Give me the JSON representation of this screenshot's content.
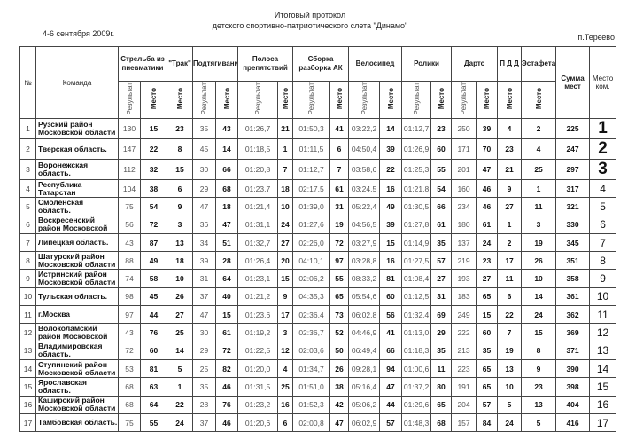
{
  "header": {
    "title": "Итоговый протокол",
    "subtitle": "детского спортивно-патриотического слета \"Динамо\"",
    "date": "4-6 сентября 2009г.",
    "location": "п.Терєево"
  },
  "columns": {
    "number": "№",
    "team": "Команда",
    "groups": [
      "Стрельба из пневматики",
      "\"Трак\"",
      "Подтягивание",
      "Полоса препятствий",
      "Сборка разборка АК",
      "Велосипед",
      "Ролики",
      "Дартс",
      "П Д Д",
      "Эстафета"
    ],
    "sum": "Сумма мест",
    "final": "Место ком.",
    "result": "Результат",
    "place": "Место"
  },
  "rows": [
    {
      "n": "1",
      "team": "Рузский район Московской области",
      "cells": [
        "130",
        "15",
        "23",
        "35",
        "43",
        "01:26,7",
        "21",
        "01:50,3",
        "41",
        "03:22,2",
        "14",
        "01:12,7",
        "23",
        "250",
        "39",
        "4",
        "2",
        "225",
        "1"
      ]
    },
    {
      "n": "2",
      "team": "Тверская область.",
      "cells": [
        "147",
        "22",
        "8",
        "45",
        "14",
        "01:18,5",
        "1",
        "01:11,5",
        "6",
        "04:50,4",
        "39",
        "01:26,9",
        "60",
        "171",
        "70",
        "23",
        "4",
        "247",
        "2"
      ]
    },
    {
      "n": "3",
      "team": "Воронежская область.",
      "cells": [
        "112",
        "32",
        "15",
        "30",
        "66",
        "01:20,8",
        "7",
        "01:12,7",
        "7",
        "03:58,6",
        "22",
        "01:25,3",
        "55",
        "201",
        "47",
        "21",
        "25",
        "297",
        "3"
      ]
    },
    {
      "n": "4",
      "team": "Республика Татарстан",
      "cells": [
        "104",
        "38",
        "6",
        "29",
        "68",
        "01:23,7",
        "18",
        "02:17,5",
        "61",
        "03:24,5",
        "16",
        "01:21,8",
        "54",
        "160",
        "46",
        "9",
        "1",
        "317",
        "4"
      ]
    },
    {
      "n": "5",
      "team": "Смоленская область.",
      "cells": [
        "75",
        "54",
        "9",
        "47",
        "18",
        "01:21,4",
        "10",
        "01:39,0",
        "31",
        "05:22,4",
        "49",
        "01:30,5",
        "66",
        "234",
        "46",
        "27",
        "11",
        "321",
        "5"
      ]
    },
    {
      "n": "6",
      "team": "Воскресенский район Московской",
      "cells": [
        "56",
        "72",
        "3",
        "36",
        "47",
        "01:31,1",
        "24",
        "01:27,6",
        "19",
        "04:56,5",
        "39",
        "01:27,8",
        "61",
        "180",
        "61",
        "1",
        "3",
        "330",
        "6"
      ]
    },
    {
      "n": "7",
      "team": "Липецкая область.",
      "cells": [
        "43",
        "87",
        "13",
        "34",
        "51",
        "01:32,7",
        "27",
        "02:26,0",
        "72",
        "03:27,9",
        "15",
        "01:14,9",
        "35",
        "137",
        "24",
        "2",
        "19",
        "345",
        "7"
      ]
    },
    {
      "n": "8",
      "team": "Шатурский район Московской области",
      "cells": [
        "88",
        "49",
        "18",
        "39",
        "28",
        "01:26,4",
        "20",
        "04:10,1",
        "97",
        "03:28,8",
        "16",
        "01:27,5",
        "57",
        "219",
        "23",
        "17",
        "26",
        "351",
        "8"
      ]
    },
    {
      "n": "9",
      "team": "Истринский район Московской области",
      "cells": [
        "74",
        "58",
        "10",
        "31",
        "64",
        "01:23,1",
        "15",
        "02:06,2",
        "55",
        "08:33,2",
        "81",
        "01:08,4",
        "27",
        "193",
        "27",
        "11",
        "10",
        "358",
        "9"
      ]
    },
    {
      "n": "10",
      "team": "Тульская область.",
      "cells": [
        "98",
        "45",
        "26",
        "37",
        "40",
        "01:21,2",
        "9",
        "04:35,3",
        "65",
        "05:54,6",
        "60",
        "01:12,5",
        "31",
        "183",
        "65",
        "6",
        "14",
        "361",
        "10"
      ]
    },
    {
      "n": "11",
      "team": "г.Москва",
      "cells": [
        "97",
        "44",
        "27",
        "47",
        "15",
        "01:23,6",
        "17",
        "02:36,4",
        "73",
        "06:02,8",
        "56",
        "01:32,4",
        "69",
        "249",
        "15",
        "22",
        "24",
        "362",
        "11"
      ]
    },
    {
      "n": "12",
      "team": "Волоколамский район Московской",
      "cells": [
        "43",
        "76",
        "25",
        "30",
        "61",
        "01:19,2",
        "3",
        "02:36,7",
        "52",
        "04:46,9",
        "41",
        "01:13,0",
        "29",
        "222",
        "60",
        "7",
        "15",
        "369",
        "12"
      ]
    },
    {
      "n": "13",
      "team": "Владимировская область.",
      "cells": [
        "72",
        "60",
        "14",
        "29",
        "72",
        "01:22,5",
        "12",
        "02:03,6",
        "50",
        "06:49,4",
        "66",
        "01:18,3",
        "35",
        "213",
        "35",
        "19",
        "8",
        "371",
        "13"
      ]
    },
    {
      "n": "14",
      "team": "Ступинский район Московской области",
      "cells": [
        "53",
        "81",
        "5",
        "25",
        "82",
        "01:20,0",
        "4",
        "01:34,7",
        "26",
        "09:28,1",
        "94",
        "01:00,6",
        "11",
        "223",
        "65",
        "13",
        "9",
        "390",
        "14"
      ]
    },
    {
      "n": "15",
      "team": "Ярославская область.",
      "cells": [
        "68",
        "63",
        "1",
        "35",
        "46",
        "01:31,5",
        "25",
        "01:51,0",
        "38",
        "05:16,4",
        "47",
        "01:37,2",
        "80",
        "191",
        "65",
        "10",
        "23",
        "398",
        "15"
      ]
    },
    {
      "n": "16",
      "team": "Каширский район Московской области",
      "cells": [
        "68",
        "64",
        "22",
        "28",
        "76",
        "01:23,2",
        "16",
        "01:52,3",
        "42",
        "05:06,2",
        "44",
        "01:29,6",
        "65",
        "204",
        "57",
        "5",
        "13",
        "404",
        "16"
      ]
    },
    {
      "n": "17",
      "team": "Тамбовская область.",
      "cells": [
        "75",
        "55",
        "24",
        "37",
        "46",
        "01:20,6",
        "6",
        "02:00,8",
        "47",
        "06:02,9",
        "57",
        "01:48,3",
        "68",
        "157",
        "84",
        "24",
        "5",
        "416",
        "17"
      ]
    }
  ]
}
